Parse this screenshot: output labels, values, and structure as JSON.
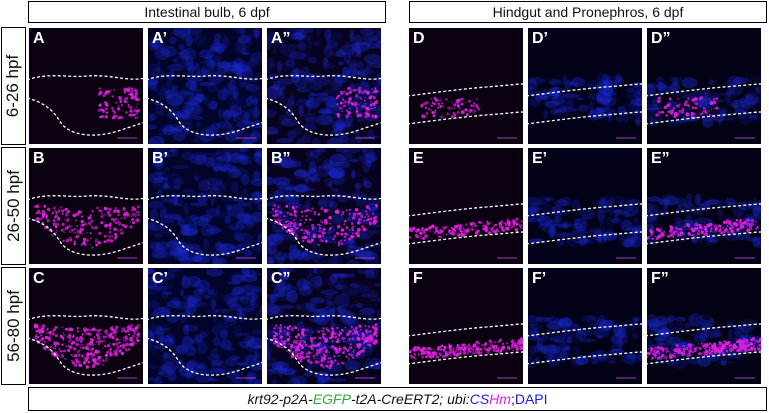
{
  "headers": {
    "left": "Intestinal bulb, 6 dpf",
    "right": "Hindgut and Pronephros, 6 dpf"
  },
  "rows": [
    {
      "label": "6-26 hpf",
      "signal": 0.2
    },
    {
      "label": "26-50 hpf",
      "signal": 0.55
    },
    {
      "label": "56-80 hpf",
      "signal": 0.9
    }
  ],
  "panel_labels": [
    [
      "A",
      "A’",
      "A”",
      "D",
      "D’",
      "D”"
    ],
    [
      "B",
      "B’",
      "B”",
      "E",
      "E’",
      "E”"
    ],
    [
      "C",
      "C’",
      "C”",
      "F",
      "F’",
      "F”"
    ]
  ],
  "channels": [
    "magenta",
    "blue",
    "merge",
    "magenta",
    "blue",
    "merge"
  ],
  "caption": {
    "part1": "krt92-p2A-",
    "part2": "EGFP",
    "part3": "-t2A-CreERT2; ubi:",
    "part4": "CS",
    "part5": "Hm",
    "part6": "; ",
    "part7": "DAPI"
  },
  "colors": {
    "egfp": "#3aa53a",
    "cs": "#1a1aff",
    "hm": "#e020e0",
    "dapi": "#1a1aff",
    "magenta_signal": "#e020e0",
    "dapi_signal": "#1a2ad8",
    "outline": "#ffffff"
  }
}
